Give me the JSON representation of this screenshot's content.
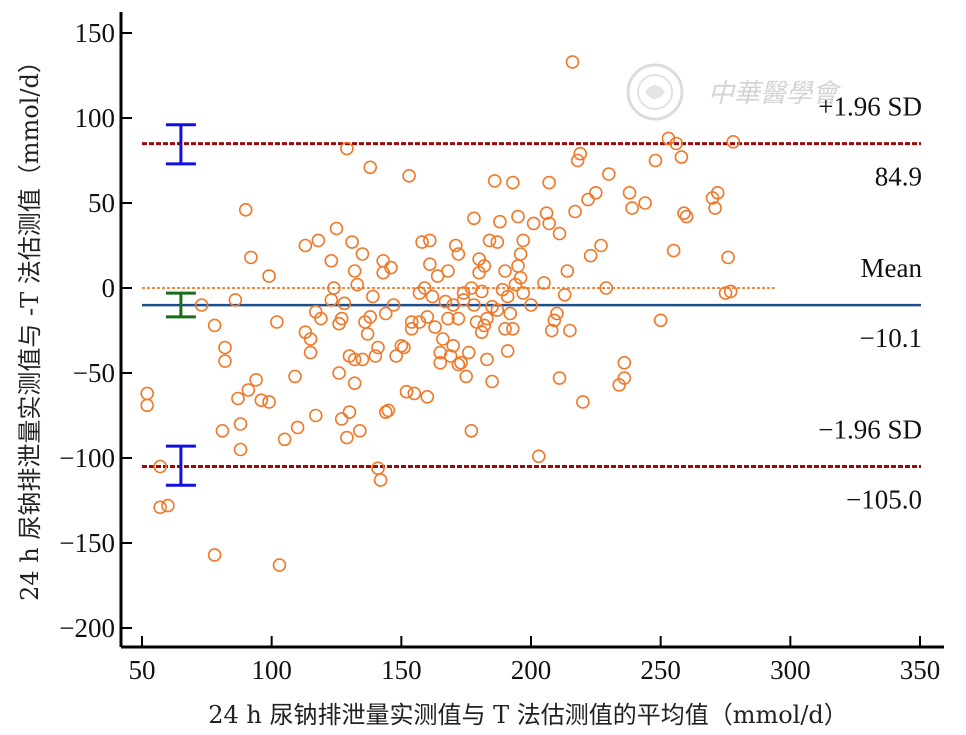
{
  "watermark": {
    "text": "中華醫學會"
  },
  "chart_data": {
    "type": "scatter",
    "xlabel": "24 h 尿钠排泄量实测值与 T 法估测值的平均值（mmol/d）",
    "ylabel": "24 h 尿钠排泄量实测值与 -T 法估测值（mmol/d）",
    "xlim": [
      45,
      350
    ],
    "ylim": [
      -210,
      160
    ],
    "xticks": [
      50,
      100,
      150,
      200,
      250,
      300,
      350
    ],
    "yticks": [
      150,
      100,
      50,
      0,
      -50,
      -100,
      -150,
      -200
    ],
    "grid": false,
    "lines": [
      {
        "name": "+1.96 SD",
        "value": 84.9,
        "value_label": "84.9",
        "color": "#9b0a0a",
        "style": "dashed"
      },
      {
        "name": "Mean",
        "value": -10.1,
        "value_label": "-10.1",
        "color": "#1f4e8c",
        "style": "solid"
      },
      {
        "name": "-1.96 SD",
        "value": -105.0,
        "value_label": "-105.0",
        "color": "#9b0a0a",
        "style": "dashed"
      }
    ],
    "zero_line": {
      "value": 0,
      "color": "#f28c3c",
      "style": "dotted"
    },
    "ci_bars": [
      {
        "x": 65,
        "low": 73,
        "high": 96,
        "color": "#1010e0"
      },
      {
        "x": 65,
        "low": -17,
        "high": -3,
        "color": "#1a6b1a"
      },
      {
        "x": 65,
        "low": -116,
        "high": -93,
        "color": "#1010e0"
      }
    ],
    "point_color": "#f07828",
    "points": [
      [
        52,
        -62
      ],
      [
        52,
        -69
      ],
      [
        57,
        -105
      ],
      [
        57,
        -129
      ],
      [
        60,
        -128
      ],
      [
        73,
        -10
      ],
      [
        78,
        -22
      ],
      [
        78,
        -157
      ],
      [
        81,
        -84
      ],
      [
        82,
        -35
      ],
      [
        82,
        -43
      ],
      [
        86,
        -7
      ],
      [
        87,
        -65
      ],
      [
        88,
        -80
      ],
      [
        88,
        -95
      ],
      [
        90,
        46
      ],
      [
        91,
        -60
      ],
      [
        92,
        18
      ],
      [
        94,
        -54
      ],
      [
        96,
        -66
      ],
      [
        99,
        -67
      ],
      [
        99,
        7
      ],
      [
        102,
        -20
      ],
      [
        103,
        -163
      ],
      [
        105,
        -89
      ],
      [
        109,
        -52
      ],
      [
        110,
        -82
      ],
      [
        113,
        -26
      ],
      [
        113,
        25
      ],
      [
        115,
        -30
      ],
      [
        115,
        -38
      ],
      [
        117,
        -75
      ],
      [
        117,
        -14
      ],
      [
        118,
        28
      ],
      [
        119,
        -18
      ],
      [
        123,
        -7
      ],
      [
        123,
        16
      ],
      [
        124,
        0
      ],
      [
        125,
        35
      ],
      [
        126,
        -21
      ],
      [
        126,
        -50
      ],
      [
        127,
        -18
      ],
      [
        127,
        -77
      ],
      [
        128,
        -9
      ],
      [
        129,
        82
      ],
      [
        129,
        -88
      ],
      [
        130,
        -73
      ],
      [
        130,
        -40
      ],
      [
        131,
        27
      ],
      [
        132,
        -56
      ],
      [
        132,
        -42
      ],
      [
        132,
        10
      ],
      [
        133,
        2
      ],
      [
        134,
        -84
      ],
      [
        135,
        20
      ],
      [
        135,
        -42
      ],
      [
        136,
        -20
      ],
      [
        137,
        -27
      ],
      [
        138,
        71
      ],
      [
        138,
        -17
      ],
      [
        139,
        -5
      ],
      [
        140,
        -40
      ],
      [
        141,
        -35
      ],
      [
        141,
        -106
      ],
      [
        142,
        -113
      ],
      [
        143,
        9
      ],
      [
        143,
        16
      ],
      [
        144,
        -15
      ],
      [
        144,
        -73
      ],
      [
        145,
        -72
      ],
      [
        146,
        12
      ],
      [
        147,
        -10
      ],
      [
        148,
        -40
      ],
      [
        150,
        -34
      ],
      [
        151,
        -35
      ],
      [
        152,
        -61
      ],
      [
        153,
        66
      ],
      [
        154,
        -20
      ],
      [
        154,
        -24
      ],
      [
        155,
        -62
      ],
      [
        157,
        -3
      ],
      [
        157,
        -20
      ],
      [
        158,
        27
      ],
      [
        159,
        0
      ],
      [
        160,
        -64
      ],
      [
        160,
        -17
      ],
      [
        161,
        28
      ],
      [
        161,
        14
      ],
      [
        162,
        -5
      ],
      [
        163,
        -23
      ],
      [
        164,
        7
      ],
      [
        165,
        -38
      ],
      [
        165,
        -44
      ],
      [
        166,
        -30
      ],
      [
        167,
        -8
      ],
      [
        168,
        10
      ],
      [
        168,
        -18
      ],
      [
        169,
        -40
      ],
      [
        170,
        -34
      ],
      [
        170,
        -10
      ],
      [
        171,
        25
      ],
      [
        172,
        -45
      ],
      [
        172,
        20
      ],
      [
        172,
        -18
      ],
      [
        173,
        -44
      ],
      [
        174,
        -7
      ],
      [
        174,
        -3
      ],
      [
        175,
        -52
      ],
      [
        176,
        -38
      ],
      [
        177,
        -84
      ],
      [
        177,
        0
      ],
      [
        178,
        41
      ],
      [
        178,
        -10
      ],
      [
        179,
        -20
      ],
      [
        180,
        17
      ],
      [
        180,
        9
      ],
      [
        181,
        -2
      ],
      [
        181,
        -26
      ],
      [
        182,
        13
      ],
      [
        182,
        -22
      ],
      [
        183,
        -42
      ],
      [
        183,
        -18
      ],
      [
        184,
        28
      ],
      [
        185,
        -55
      ],
      [
        185,
        -11
      ],
      [
        186,
        63
      ],
      [
        187,
        27
      ],
      [
        187,
        -13
      ],
      [
        188,
        39
      ],
      [
        189,
        -1
      ],
      [
        190,
        10
      ],
      [
        190,
        -24
      ],
      [
        191,
        -5
      ],
      [
        191,
        -37
      ],
      [
        192,
        -15
      ],
      [
        193,
        62
      ],
      [
        193,
        -24
      ],
      [
        194,
        2
      ],
      [
        195,
        42
      ],
      [
        195,
        13
      ],
      [
        196,
        20
      ],
      [
        196,
        6
      ],
      [
        197,
        -3
      ],
      [
        197,
        28
      ],
      [
        200,
        -10
      ],
      [
        201,
        38
      ],
      [
        203,
        -99
      ],
      [
        205,
        3
      ],
      [
        206,
        44
      ],
      [
        207,
        62
      ],
      [
        207,
        38
      ],
      [
        208,
        -25
      ],
      [
        209,
        -19
      ],
      [
        210,
        -15
      ],
      [
        211,
        -53
      ],
      [
        211,
        32
      ],
      [
        213,
        -4
      ],
      [
        214,
        10
      ],
      [
        215,
        -25
      ],
      [
        216,
        133
      ],
      [
        217,
        45
      ],
      [
        218,
        75
      ],
      [
        219,
        79
      ],
      [
        220,
        -67
      ],
      [
        222,
        52
      ],
      [
        223,
        19
      ],
      [
        225,
        56
      ],
      [
        227,
        25
      ],
      [
        229,
        0
      ],
      [
        230,
        67
      ],
      [
        234,
        -57
      ],
      [
        236,
        -44
      ],
      [
        236,
        -53
      ],
      [
        238,
        56
      ],
      [
        239,
        47
      ],
      [
        244,
        50
      ],
      [
        248,
        75
      ],
      [
        250,
        -19
      ],
      [
        253,
        88
      ],
      [
        255,
        22
      ],
      [
        256,
        85
      ],
      [
        258,
        77
      ],
      [
        259,
        44
      ],
      [
        260,
        42
      ],
      [
        270,
        53
      ],
      [
        271,
        47
      ],
      [
        272,
        56
      ],
      [
        275,
        -3
      ],
      [
        276,
        18
      ],
      [
        277,
        -2
      ],
      [
        278,
        86
      ]
    ]
  }
}
